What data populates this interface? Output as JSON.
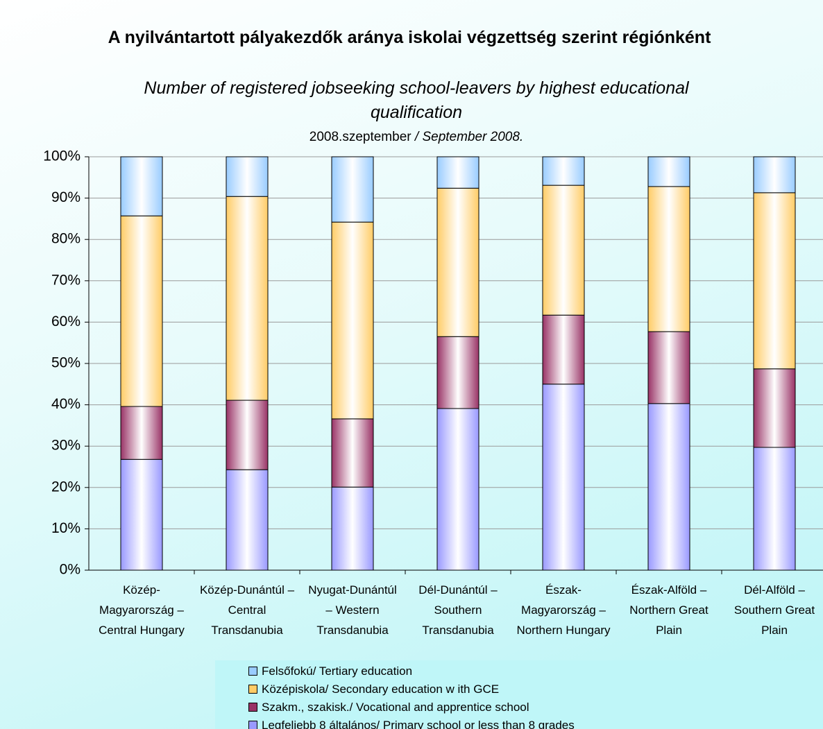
{
  "chart_data": {
    "type": "stacked_bar",
    "title": "A nyilvántartott pályakezdők aránya iskolai végzettség szerint régiónként",
    "subtitle": "Number of registered jobseeking school-leavers by highest educational qualification",
    "date_hu": "2008.szeptember",
    "date_en": "/ September 2008.",
    "categories": [
      "Közép-Magyarország – Central Hungary",
      "Közép-Dunántúl – Central Transdanubia",
      "Nyugat-Dunántúl – Western Transdanubia",
      "Dél-Dunántúl – Southern Transdanubia",
      "Észak-Magyarország – Northern Hungary",
      "Észak-Alföld – Northern Great Plain",
      "Dél-Alföld – Southern Great Plain"
    ],
    "series": [
      {
        "name": "Legfeljebb 8 általános/ Primary school or less than 8 grades",
        "color": "#9999ff",
        "values": [
          26.8,
          24.3,
          20.1,
          39.1,
          45.0,
          40.3,
          29.7
        ]
      },
      {
        "name": "Szakm., szakisk./ Vocational and apprentice school",
        "color": "#993366",
        "values": [
          12.8,
          16.8,
          16.5,
          17.4,
          16.7,
          17.4,
          19.0
        ]
      },
      {
        "name": "Középiskola/ Secondary education w ith GCE",
        "color": "#ffcc66",
        "values": [
          46.1,
          49.3,
          47.6,
          35.9,
          31.4,
          35.1,
          42.6
        ]
      },
      {
        "name": "Felsőfokú/ Tertiary education",
        "color": "#99ccff",
        "values": [
          14.3,
          9.6,
          15.8,
          7.6,
          6.9,
          7.2,
          8.7
        ]
      }
    ],
    "ylim": [
      0,
      100
    ],
    "yticks": [
      {
        "value": 0,
        "label": "0%"
      },
      {
        "value": 10,
        "label": "10%"
      },
      {
        "value": 20,
        "label": "20%"
      },
      {
        "value": 30,
        "label": "30%"
      },
      {
        "value": 40,
        "label": "40%"
      },
      {
        "value": 50,
        "label": "50%"
      },
      {
        "value": 60,
        "label": "60%"
      },
      {
        "value": 70,
        "label": "70%"
      },
      {
        "value": 80,
        "label": "80%"
      },
      {
        "value": 90,
        "label": "90%"
      },
      {
        "value": 100,
        "label": "100%"
      }
    ],
    "grid": true
  }
}
